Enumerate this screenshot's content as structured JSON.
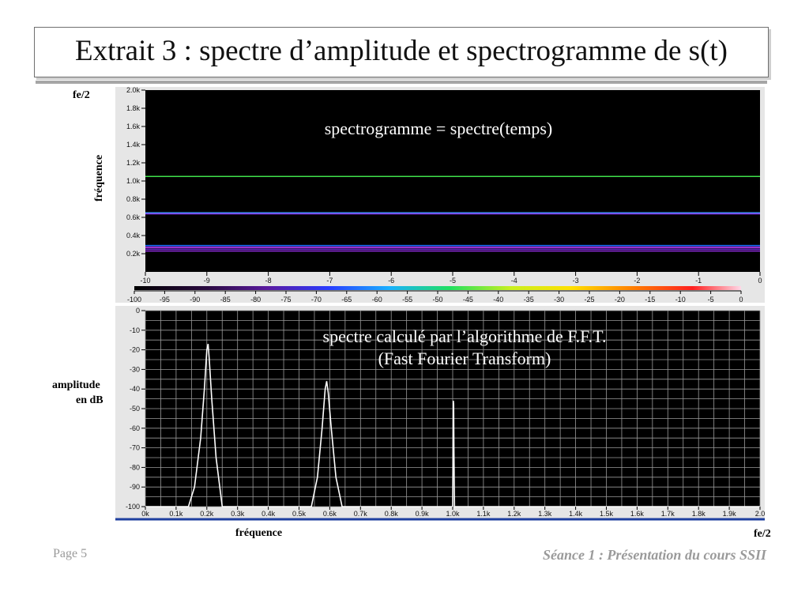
{
  "slide": {
    "title": "Extrait 3 : spectre d’amplitude et spectrogramme de s(t)",
    "page": "Page 5",
    "course": "Séance 1 : Présentation du cours SSII"
  },
  "labels": {
    "fe2_top": "fe/2",
    "freq_axis_vertical": "fréquence",
    "amplitude_line1": "amplitude",
    "amplitude_line2": "en dB",
    "freq_axis_bottom": "fréquence",
    "fe2_bottom": "fe/2"
  },
  "colors": {
    "plot_bg": "#000000",
    "panel_bg": "#e6e6e6",
    "grid": "#9a9a9a",
    "trace": "#ffffff",
    "axis_line_blue": "#1f3f9f"
  },
  "chart_data": [
    {
      "type": "heatmap",
      "title": "spectrogramme = spectre(temps)",
      "x": {
        "ticks": [
          "-10",
          "-9",
          "-8",
          "-7",
          "-6",
          "-5",
          "-4",
          "-3",
          "-2",
          "-1",
          "0"
        ],
        "range": [
          -10,
          0
        ]
      },
      "y": {
        "ticks": [
          "0.2k",
          "0.4k",
          "0.6k",
          "0.8k",
          "1.0k",
          "1.2k",
          "1.4k",
          "1.6k",
          "1.8k",
          "2.0k"
        ],
        "range": [
          0,
          2000
        ]
      },
      "lines": [
        {
          "freq": 1050,
          "color": "#3fe04a"
        },
        {
          "freq": 650,
          "color": "#2ea8ff"
        },
        {
          "freq": 640,
          "color": "#8a3cff"
        },
        {
          "freq": 290,
          "color": "#1d6bff"
        },
        {
          "freq": 270,
          "color": "#c23cff"
        },
        {
          "freq": 250,
          "color": "#6a2cd0"
        },
        {
          "freq": 230,
          "color": "#8a2ad8"
        }
      ],
      "colorbar": {
        "ticks": [
          "-100",
          "-95",
          "-90",
          "-85",
          "-80",
          "-75",
          "-70",
          "-65",
          "-60",
          "-55",
          "-50",
          "-45",
          "-40",
          "-35",
          "-30",
          "-25",
          "-20",
          "-15",
          "-10",
          "-5",
          "0"
        ],
        "range": [
          -100,
          0
        ]
      }
    },
    {
      "type": "line",
      "title": "spectre calculé par l’algorithme de F.F.T.",
      "subtitle": "(Fast Fourier Transform)",
      "x": {
        "ticks": [
          "0k",
          "0.1k",
          "0.2k",
          "0.3k",
          "0.4k",
          "0.5k",
          "0.6k",
          "0.7k",
          "0.8k",
          "0.9k",
          "1.0k",
          "1.1k",
          "1.2k",
          "1.3k",
          "1.4k",
          "1.5k",
          "1.6k",
          "1.7k",
          "1.8k",
          "1.9k",
          "2.0"
        ],
        "range": [
          0,
          2000
        ]
      },
      "y": {
        "ticks": [
          "0",
          "-10",
          "-20",
          "-30",
          "-40",
          "-50",
          "-60",
          "-70",
          "-80",
          "-90",
          "-100"
        ],
        "range": [
          -100,
          0
        ]
      },
      "series": [
        {
          "points": [
            [
              0,
              -100
            ],
            [
              140,
              -100
            ],
            [
              160,
              -90
            ],
            [
              180,
              -65
            ],
            [
              192,
              -40
            ],
            [
              200,
              -20
            ],
            [
              204,
              -17
            ],
            [
              208,
              -25
            ],
            [
              216,
              -45
            ],
            [
              230,
              -75
            ],
            [
              250,
              -100
            ],
            [
              540,
              -100
            ],
            [
              560,
              -85
            ],
            [
              575,
              -60
            ],
            [
              585,
              -40
            ],
            [
              590,
              -36
            ],
            [
              595,
              -42
            ],
            [
              605,
              -60
            ],
            [
              620,
              -85
            ],
            [
              640,
              -100
            ],
            [
              1000,
              -100
            ],
            [
              1001,
              -72
            ],
            [
              1002,
              -46
            ],
            [
              1003,
              -48
            ],
            [
              1004,
              -72
            ],
            [
              1006,
              -100
            ],
            [
              2000,
              -100
            ]
          ]
        }
      ]
    }
  ]
}
